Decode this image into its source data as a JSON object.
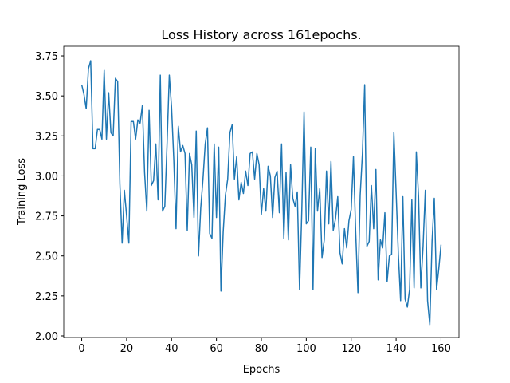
{
  "chart_data": {
    "type": "line",
    "title": "Loss History across 161epochs.",
    "x_label": "Epochs",
    "y_label": "Training Loss",
    "x": [
      0,
      1,
      2,
      3,
      4,
      5,
      6,
      7,
      8,
      9,
      10,
      11,
      12,
      13,
      14,
      15,
      16,
      17,
      18,
      19,
      20,
      21,
      22,
      23,
      24,
      25,
      26,
      27,
      28,
      29,
      30,
      31,
      32,
      33,
      34,
      35,
      36,
      37,
      38,
      39,
      40,
      41,
      42,
      43,
      44,
      45,
      46,
      47,
      48,
      49,
      50,
      51,
      52,
      53,
      54,
      55,
      56,
      57,
      58,
      59,
      60,
      61,
      62,
      63,
      64,
      65,
      66,
      67,
      68,
      69,
      70,
      71,
      72,
      73,
      74,
      75,
      76,
      77,
      78,
      79,
      80,
      81,
      82,
      83,
      84,
      85,
      86,
      87,
      88,
      89,
      90,
      91,
      92,
      93,
      94,
      95,
      96,
      97,
      98,
      99,
      100,
      101,
      102,
      103,
      104,
      105,
      106,
      107,
      108,
      109,
      110,
      111,
      112,
      113,
      114,
      115,
      116,
      117,
      118,
      119,
      120,
      121,
      122,
      123,
      124,
      125,
      126,
      127,
      128,
      129,
      130,
      131,
      132,
      133,
      134,
      135,
      136,
      137,
      138,
      139,
      140,
      141,
      142,
      143,
      144,
      145,
      146,
      147,
      148,
      149,
      150,
      151,
      152,
      153,
      154,
      155,
      156,
      157,
      158,
      159,
      160
    ],
    "series": [
      {
        "color": "#1f77b4",
        "values": [
          3.57,
          3.51,
          3.42,
          3.67,
          3.72,
          3.17,
          3.17,
          3.29,
          3.29,
          3.23,
          3.66,
          3.23,
          3.52,
          3.27,
          3.25,
          3.61,
          3.59,
          2.95,
          2.58,
          2.91,
          2.75,
          2.58,
          3.34,
          3.34,
          3.23,
          3.35,
          3.33,
          3.44,
          3.02,
          2.78,
          3.41,
          2.94,
          2.97,
          3.2,
          2.85,
          3.63,
          2.78,
          2.81,
          3.2,
          3.63,
          3.43,
          3.1,
          2.67,
          3.31,
          3.15,
          3.19,
          3.14,
          2.66,
          3.14,
          3.07,
          2.74,
          3.28,
          2.5,
          2.8,
          2.98,
          3.2,
          3.3,
          2.64,
          2.61,
          3.2,
          2.74,
          3.18,
          2.28,
          2.65,
          2.88,
          2.98,
          3.27,
          3.32,
          2.98,
          3.12,
          2.85,
          2.96,
          2.89,
          3.03,
          2.94,
          3.14,
          3.15,
          2.98,
          3.14,
          3.07,
          2.76,
          2.92,
          2.78,
          3.06,
          3.0,
          2.74,
          2.99,
          3.03,
          2.77,
          3.2,
          2.61,
          3.02,
          2.6,
          3.07,
          2.86,
          2.81,
          2.9,
          2.29,
          2.78,
          3.4,
          2.7,
          2.72,
          3.18,
          2.29,
          3.17,
          2.78,
          2.92,
          2.49,
          2.6,
          3.03,
          2.7,
          3.09,
          2.66,
          2.73,
          2.87,
          2.52,
          2.45,
          2.67,
          2.55,
          2.72,
          2.79,
          3.12,
          2.65,
          2.27,
          2.88,
          3.14,
          3.57,
          2.56,
          2.59,
          2.94,
          2.67,
          3.04,
          2.35,
          2.6,
          2.55,
          2.77,
          2.34,
          2.5,
          2.51,
          3.27,
          2.9,
          2.51,
          2.22,
          2.87,
          2.23,
          2.18,
          2.29,
          2.85,
          2.3,
          3.15,
          2.87,
          2.3,
          2.56,
          2.91,
          2.22,
          2.07,
          2.59,
          2.86,
          2.29,
          2.42,
          2.57
        ]
      }
    ],
    "xlim": [
      -8,
      168
    ],
    "ylim": [
      1.99,
      3.81
    ],
    "xticks": [
      0,
      20,
      40,
      60,
      80,
      100,
      120,
      140,
      160
    ],
    "yticks": [
      {
        "value": 2.0,
        "label": "2.00"
      },
      {
        "value": 2.25,
        "label": "2.25"
      },
      {
        "value": 2.5,
        "label": "2.50"
      },
      {
        "value": 2.75,
        "label": "2.75"
      },
      {
        "value": 3.0,
        "label": "3.00"
      },
      {
        "value": 3.25,
        "label": "3.25"
      },
      {
        "value": 3.5,
        "label": "3.50"
      },
      {
        "value": 3.75,
        "label": "3.75"
      }
    ]
  }
}
